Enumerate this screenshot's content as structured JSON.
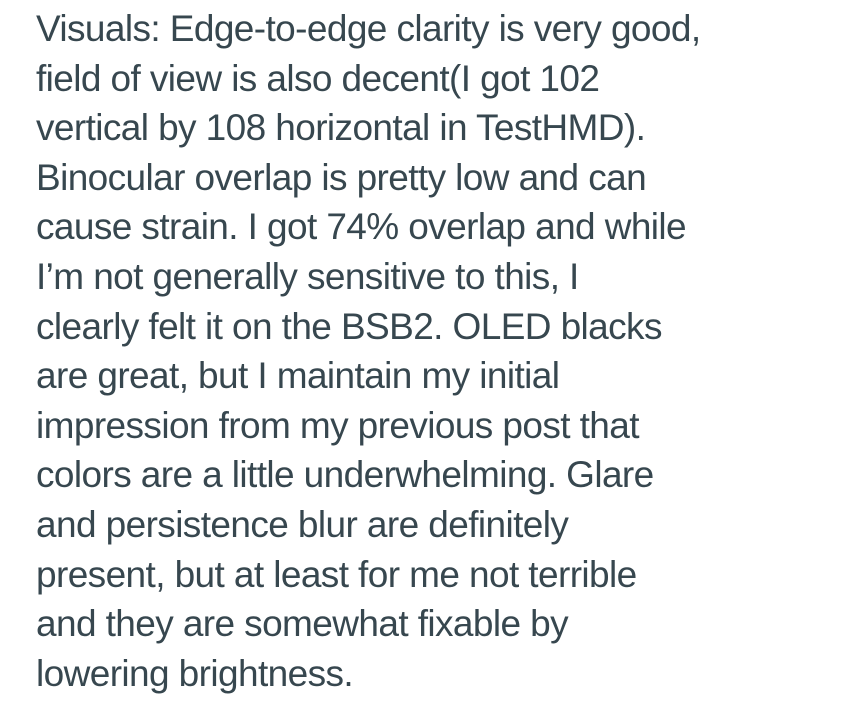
{
  "review": {
    "section_label": "Visuals",
    "text": "Visuals: Edge-to-edge clarity is very good,\nfield of view is also decent(I got 102\nvertical by 108 horizontal in TestHMD).\nBinocular overlap is pretty low and can\ncause strain. I got 74% overlap and while\nI’m not generally sensitive to this, I\nclearly felt it on the BSB2. OLED blacks\nare great, but I maintain my initial\nimpression from my previous post that\ncolors are a little underwhelming. Glare\nand persistence blur are definitely\npresent, but at least for me not terrible\nand they are somewhat fixable by\nlowering brightness.",
    "stats": {
      "fov_vertical_deg": "102",
      "fov_horizontal_deg": "108",
      "fov_tool": "TestHMD",
      "binocular_overlap_percent": "74%",
      "headset": "BSB2",
      "display_type": "OLED"
    },
    "text_color": "#37474f",
    "background_color": "#ffffff"
  }
}
